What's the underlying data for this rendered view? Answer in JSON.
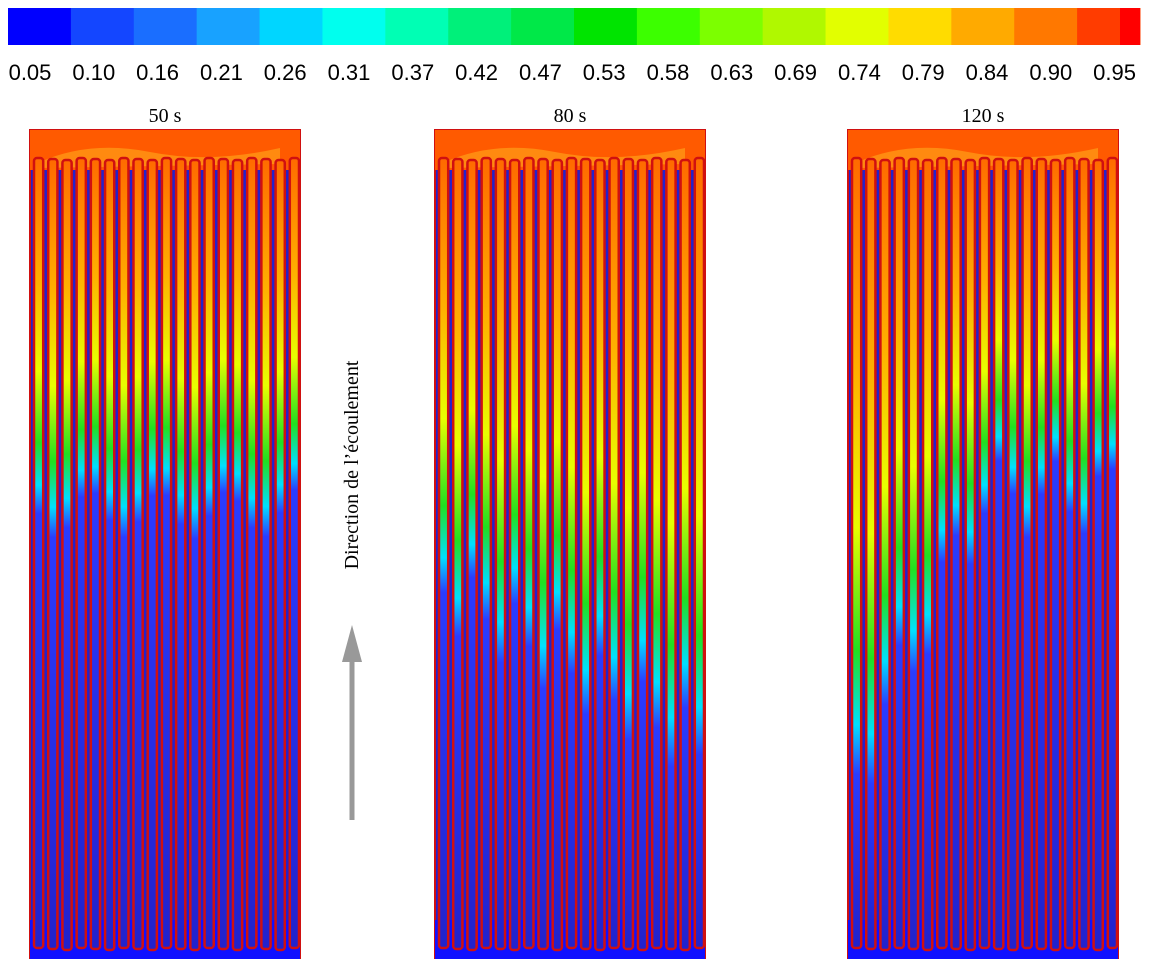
{
  "colorbar": {
    "labels": [
      "0.05",
      "0.10",
      "0.16",
      "0.21",
      "0.26",
      "0.31",
      "0.37",
      "0.42",
      "0.47",
      "0.53",
      "0.58",
      "0.63",
      "0.69",
      "0.74",
      "0.79",
      "0.84",
      "0.90",
      "0.95"
    ]
  },
  "panels": [
    {
      "title": "50 s"
    },
    {
      "title": "80 s"
    },
    {
      "title": "120 s"
    }
  ],
  "arrow_label": "Direction de l’écoulement"
}
